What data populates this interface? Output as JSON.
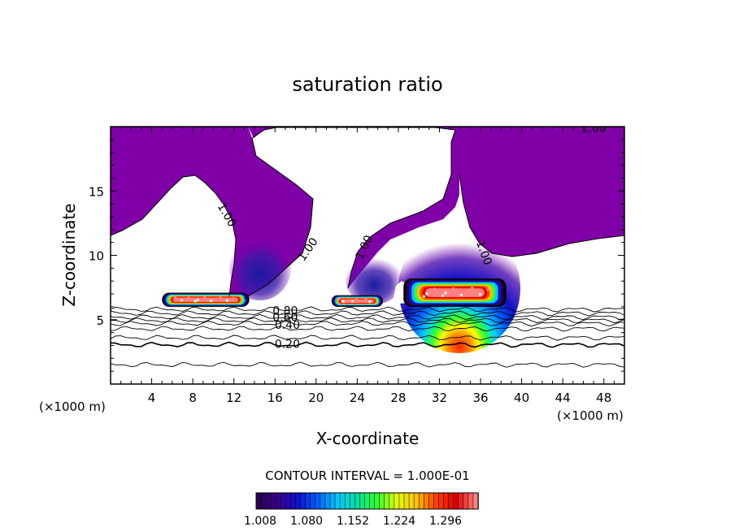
{
  "chart_data": {
    "type": "heatmap",
    "title": "saturation ratio",
    "xlabel": "X-coordinate",
    "ylabel": "Z-coordinate",
    "x_unit": "(×1000 m)",
    "x_unit_right": "(×1000 m)",
    "xlim": [
      0,
      50
    ],
    "ylim": [
      0,
      20
    ],
    "x_ticks": [
      4,
      8,
      12,
      16,
      20,
      24,
      28,
      32,
      36,
      40,
      44,
      48
    ],
    "y_ticks": [
      5,
      10,
      15
    ],
    "contour_interval_text": "CONTOUR INTERVAL = 1.000E-01",
    "colorbar": {
      "tick_labels": [
        "1.008",
        "1.080",
        "1.152",
        "1.224",
        "1.296"
      ],
      "colors": [
        "#2a0050",
        "#3a008c",
        "#1010d0",
        "#0060ff",
        "#00c8ff",
        "#00e0a0",
        "#30ff30",
        "#e0ff00",
        "#ffc000",
        "#ff4000",
        "#e00000",
        "#ff8080"
      ]
    },
    "supersaturated_color": "#8000a8",
    "contour_labels": [
      {
        "text": "1.00",
        "x": 47.0,
        "y": 19.6,
        "rotate": 0
      },
      {
        "text": "1.00",
        "x": 11.0,
        "y": 13.0,
        "rotate": 60
      },
      {
        "text": "1.00",
        "x": 19.5,
        "y": 10.3,
        "rotate": -55
      },
      {
        "text": "1.00",
        "x": 25.0,
        "y": 10.5,
        "rotate": -65
      },
      {
        "text": "1.00",
        "x": 36.0,
        "y": 10.1,
        "rotate": 70
      },
      {
        "text": "0.80",
        "x": 17.0,
        "y": 5.4,
        "rotate": 0
      },
      {
        "text": "0.60",
        "x": 17.0,
        "y": 4.9,
        "rotate": 0
      },
      {
        "text": "0.40",
        "x": 17.2,
        "y": 4.3,
        "rotate": 0
      },
      {
        "text": "0.20",
        "x": 17.2,
        "y": 2.8,
        "rotate": 0
      }
    ],
    "low_contour_levels": [
      {
        "level": 0.9,
        "y": 5.8
      },
      {
        "level": 0.8,
        "y": 5.5
      },
      {
        "level": 0.7,
        "y": 5.2
      },
      {
        "level": 0.6,
        "y": 4.95
      },
      {
        "level": 0.5,
        "y": 4.7
      },
      {
        "level": 0.4,
        "y": 4.3
      },
      {
        "level": 0.3,
        "y": 3.6
      },
      {
        "level": 0.2,
        "y": 3.05
      },
      {
        "level": 0.1,
        "y": 1.5
      }
    ],
    "clouds": [
      {
        "x_start": 5.0,
        "x_end": 13.5,
        "z_base": 6.0,
        "z_top": 7.1
      },
      {
        "x_start": 21.5,
        "x_end": 26.5,
        "z_base": 6.0,
        "z_top": 6.9
      },
      {
        "x_start": 28.5,
        "x_end": 38.5,
        "z_base": 6.0,
        "z_top": 8.2
      }
    ]
  }
}
